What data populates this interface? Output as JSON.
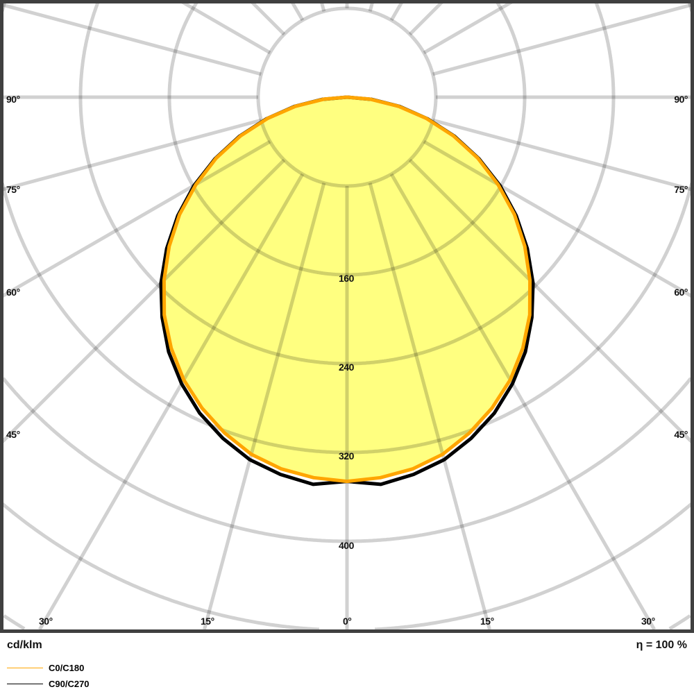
{
  "chart_data": {
    "type": "polar-line",
    "unit_label": "cd/klm",
    "efficiency_label": "η = 100 %",
    "radial_ticks": [
      80,
      160,
      240,
      320,
      400
    ],
    "radial_tick_labels": [
      "160",
      "240",
      "320",
      "400"
    ],
    "angle_labels_side": [
      "90°",
      "75°",
      "60°",
      "45°"
    ],
    "angle_labels_bottom": [
      "30°",
      "15°",
      "0°",
      "15°",
      "30°"
    ],
    "angle_step_deg": 15,
    "angles_deg": [
      0,
      5,
      10,
      15,
      20,
      25,
      30,
      35,
      40,
      45,
      50,
      55,
      60,
      65,
      70,
      75,
      80,
      85,
      90
    ],
    "series": [
      {
        "name": "C0/C180",
        "color": "#ffa500",
        "values": [
          346,
          344,
          340,
          333,
          322,
          309,
          294,
          276,
          256,
          233,
          209,
          184,
          157,
          130,
          102,
          74,
          47,
          21,
          0
        ]
      },
      {
        "name": "C90/C270",
        "color": "#000000",
        "values": [
          346,
          350,
          345,
          338,
          327,
          314,
          298,
          280,
          259,
          237,
          212,
          186,
          159,
          131,
          103,
          75,
          48,
          22,
          0
        ]
      }
    ],
    "fill_color": "#ffff80",
    "grid": true
  }
}
